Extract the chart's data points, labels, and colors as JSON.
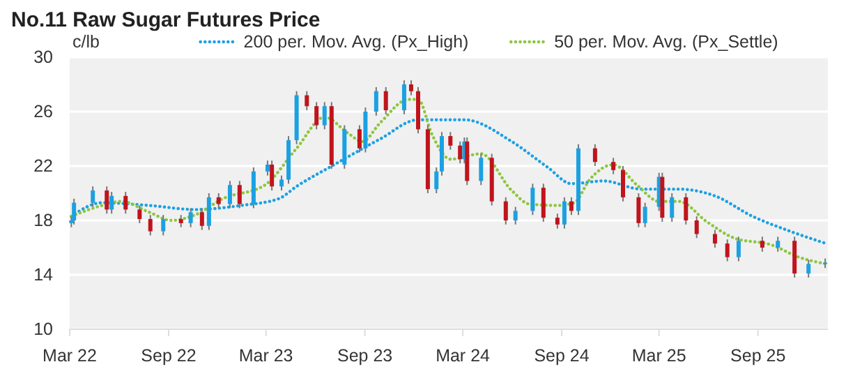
{
  "chart_data": {
    "type": "candlestick",
    "title": "No.11 Raw Sugar Futures Price",
    "ylabel": "c/lb",
    "x": [
      "2022-03-04",
      "2022-03-09",
      "2022-04-13",
      "2022-05-09",
      "2022-05-18",
      "2022-06-13",
      "2022-07-09",
      "2022-07-29",
      "2022-08-22",
      "2022-09-24",
      "2022-10-12",
      "2022-11-02",
      "2022-11-15",
      "2022-12-03",
      "2022-12-24",
      "2023-01-11",
      "2023-02-06",
      "2023-03-04",
      "2023-03-12",
      "2023-03-30",
      "2023-04-12",
      "2023-04-27",
      "2023-05-16",
      "2023-06-03",
      "2023-06-18",
      "2023-07-01",
      "2023-07-25",
      "2023-08-22",
      "2023-09-02",
      "2023-09-22",
      "2023-10-10",
      "2023-11-13",
      "2023-11-26",
      "2023-12-09",
      "2023-12-27",
      "2024-01-12",
      "2024-01-22",
      "2024-02-07",
      "2024-02-25",
      "2024-03-04",
      "2024-03-09",
      "2024-04-04",
      "2024-04-24",
      "2024-05-20",
      "2024-06-07",
      "2024-07-09",
      "2024-07-29",
      "2024-08-24",
      "2024-09-06",
      "2024-09-19",
      "2024-10-02",
      "2024-11-02",
      "2024-12-06",
      "2024-12-24",
      "2025-01-22",
      "2025-02-03",
      "2025-03-01",
      "2025-03-07",
      "2025-03-25",
      "2025-04-20",
      "2025-05-10",
      "2025-06-13",
      "2025-07-06",
      "2025-07-27",
      "2025-09-09",
      "2025-10-08",
      "2025-11-08",
      "2025-12-04",
      "2026-01-04"
    ],
    "ohlc": [
      [
        17.8,
        18.3,
        17.5,
        18.0
      ],
      [
        18.0,
        19.6,
        17.7,
        19.3
      ],
      [
        19.3,
        20.5,
        19.0,
        20.2
      ],
      [
        20.2,
        20.5,
        18.5,
        18.8
      ],
      [
        18.8,
        20.1,
        18.5,
        19.8
      ],
      [
        19.8,
        20.1,
        18.5,
        18.8
      ],
      [
        18.8,
        19.1,
        17.8,
        18.1
      ],
      [
        18.1,
        18.4,
        16.9,
        17.2
      ],
      [
        17.2,
        18.4,
        16.9,
        18.1
      ],
      [
        18.1,
        18.4,
        17.5,
        17.8
      ],
      [
        17.8,
        18.9,
        17.5,
        18.6
      ],
      [
        18.6,
        18.9,
        17.3,
        17.6
      ],
      [
        17.6,
        20.0,
        17.3,
        19.7
      ],
      [
        19.7,
        20.0,
        18.9,
        19.2
      ],
      [
        19.2,
        20.9,
        18.9,
        20.6
      ],
      [
        20.6,
        20.9,
        18.9,
        19.2
      ],
      [
        19.2,
        21.9,
        18.9,
        21.6
      ],
      [
        21.6,
        22.4,
        21.3,
        22.1
      ],
      [
        22.1,
        22.4,
        20.2,
        20.5
      ],
      [
        20.5,
        21.3,
        20.2,
        21.0
      ],
      [
        21.0,
        24.2,
        20.7,
        23.9
      ],
      [
        23.9,
        27.5,
        23.6,
        27.2
      ],
      [
        27.2,
        27.5,
        26.1,
        26.4
      ],
      [
        26.4,
        26.7,
        24.7,
        25.0
      ],
      [
        25.0,
        26.7,
        24.7,
        26.4
      ],
      [
        26.4,
        26.7,
        21.8,
        22.1
      ],
      [
        22.1,
        25.0,
        21.8,
        24.7
      ],
      [
        24.7,
        25.0,
        23.0,
        23.3
      ],
      [
        23.3,
        26.3,
        23.0,
        26.0
      ],
      [
        26.0,
        27.8,
        25.7,
        27.5
      ],
      [
        27.5,
        27.8,
        25.8,
        26.1
      ],
      [
        26.1,
        28.3,
        25.8,
        28.0
      ],
      [
        28.0,
        28.3,
        27.2,
        27.5
      ],
      [
        27.5,
        27.8,
        24.4,
        24.7
      ],
      [
        24.7,
        25.0,
        20.0,
        20.3
      ],
      [
        20.3,
        21.9,
        20.0,
        21.6
      ],
      [
        21.6,
        24.5,
        21.3,
        24.2
      ],
      [
        24.2,
        24.5,
        23.2,
        23.5
      ],
      [
        23.5,
        23.8,
        22.2,
        22.5
      ],
      [
        22.5,
        24.1,
        22.2,
        23.8
      ],
      [
        23.8,
        24.1,
        20.6,
        20.9
      ],
      [
        20.9,
        22.9,
        20.6,
        22.6
      ],
      [
        22.6,
        22.9,
        19.1,
        19.4
      ],
      [
        19.4,
        19.7,
        17.7,
        18.0
      ],
      [
        18.0,
        19.0,
        17.7,
        18.7
      ],
      [
        18.7,
        20.7,
        18.4,
        20.4
      ],
      [
        20.4,
        20.7,
        17.9,
        18.2
      ],
      [
        18.2,
        18.5,
        17.4,
        17.7
      ],
      [
        17.7,
        19.7,
        17.4,
        19.4
      ],
      [
        19.4,
        19.7,
        18.4,
        18.7
      ],
      [
        18.7,
        23.6,
        18.4,
        23.3
      ],
      [
        23.3,
        23.6,
        22.0,
        22.3
      ],
      [
        22.3,
        22.6,
        21.4,
        21.7
      ],
      [
        21.7,
        22.0,
        19.4,
        19.7
      ],
      [
        19.7,
        20.0,
        17.5,
        17.8
      ],
      [
        17.8,
        19.3,
        17.5,
        19.0
      ],
      [
        19.0,
        21.5,
        18.7,
        21.2
      ],
      [
        21.2,
        21.5,
        17.9,
        18.2
      ],
      [
        18.2,
        20.0,
        17.9,
        19.7
      ],
      [
        19.7,
        20.0,
        17.7,
        18.0
      ],
      [
        18.0,
        18.3,
        16.7,
        17.0
      ],
      [
        17.0,
        17.3,
        16.0,
        16.3
      ],
      [
        16.3,
        16.6,
        15.0,
        15.3
      ],
      [
        15.3,
        16.8,
        15.0,
        16.5
      ],
      [
        16.5,
        16.8,
        15.7,
        16.0
      ],
      [
        16.0,
        16.8,
        15.7,
        16.5
      ],
      [
        16.5,
        16.8,
        13.8,
        14.1
      ],
      [
        14.1,
        15.1,
        13.8,
        14.8
      ],
      [
        14.8,
        15.2,
        14.5,
        14.9
      ]
    ],
    "colors": [
      "#1ba1e2",
      "#1ba1e2",
      "#1ba1e2",
      "#c0141c",
      "#1ba1e2",
      "#c0141c",
      "#c0141c",
      "#c0141c",
      "#1ba1e2",
      "#c0141c",
      "#1ba1e2",
      "#c0141c",
      "#1ba1e2",
      "#c0141c",
      "#1ba1e2",
      "#c0141c",
      "#1ba1e2",
      "#1ba1e2",
      "#c0141c",
      "#1ba1e2",
      "#1ba1e2",
      "#1ba1e2",
      "#c0141c",
      "#c0141c",
      "#1ba1e2",
      "#c0141c",
      "#1ba1e2",
      "#c0141c",
      "#1ba1e2",
      "#1ba1e2",
      "#c0141c",
      "#1ba1e2",
      "#c0141c",
      "#c0141c",
      "#c0141c",
      "#1ba1e2",
      "#1ba1e2",
      "#c0141c",
      "#c0141c",
      "#1ba1e2",
      "#c0141c",
      "#1ba1e2",
      "#c0141c",
      "#c0141c",
      "#1ba1e2",
      "#1ba1e2",
      "#c0141c",
      "#c0141c",
      "#1ba1e2",
      "#c0141c",
      "#1ba1e2",
      "#c0141c",
      "#c0141c",
      "#c0141c",
      "#c0141c",
      "#1ba1e2",
      "#1ba1e2",
      "#c0141c",
      "#1ba1e2",
      "#c0141c",
      "#c0141c",
      "#c0141c",
      "#c0141c",
      "#1ba1e2",
      "#c0141c",
      "#1ba1e2",
      "#c0141c",
      "#1ba1e2",
      "#1ba1e2"
    ],
    "series": [
      {
        "name": "200 per. Mov. Avg. (Px_High)",
        "type": "line",
        "color": "#1ba1e2",
        "x": [
          "2022-03-04",
          "2022-04-30",
          "2022-07-27",
          "2022-10-20",
          "2023-01-14",
          "2023-03-25",
          "2023-04-27",
          "2023-07-06",
          "2023-09-30",
          "2023-12-09",
          "2024-01-22",
          "2024-03-04",
          "2024-05-31",
          "2024-08-06",
          "2024-09-19",
          "2024-11-18",
          "2025-01-27",
          "2025-04-07",
          "2025-06-13",
          "2025-08-22",
          "2025-10-31",
          "2026-01-06"
        ],
        "values": [
          18.3,
          19.3,
          19.1,
          18.8,
          19.1,
          19.6,
          20.5,
          22.1,
          24.0,
          25.4,
          25.4,
          25.4,
          23.8,
          21.9,
          20.7,
          20.9,
          20.3,
          20.3,
          19.8,
          18.3,
          17.2,
          16.3
        ]
      },
      {
        "name": "50 per. Mov. Avg. (Px_Settle)",
        "type": "line",
        "color": "#8dc63f",
        "x": [
          "2022-03-04",
          "2022-04-30",
          "2022-06-05",
          "2022-07-27",
          "2022-09-06",
          "2022-10-20",
          "2022-12-11",
          "2023-02-27",
          "2023-04-27",
          "2023-06-18",
          "2023-08-01",
          "2023-08-27",
          "2023-09-30",
          "2023-11-21",
          "2023-12-09",
          "2024-01-04",
          "2024-02-07",
          "2024-04-04",
          "2024-05-31",
          "2024-07-03",
          "2024-08-24",
          "2024-09-24",
          "2024-10-23",
          "2024-12-06",
          "2025-01-19",
          "2025-03-01",
          "2025-04-07",
          "2025-05-29",
          "2025-07-19",
          "2025-09-26",
          "2025-11-16",
          "2026-01-06"
        ],
        "values": [
          18.3,
          19.1,
          19.4,
          18.6,
          18.0,
          18.4,
          19.6,
          20.6,
          23.3,
          25.6,
          24.4,
          23.8,
          25.2,
          26.9,
          26.9,
          24.3,
          22.5,
          22.9,
          20.2,
          19.2,
          19.1,
          19.3,
          21.0,
          22.1,
          20.6,
          19.4,
          19.4,
          17.9,
          16.7,
          16.2,
          15.3,
          14.8
        ]
      }
    ],
    "xlim": [
      "2022-03-01",
      "2026-01-09"
    ],
    "xticks": [
      {
        "value": "2022-03-01",
        "label": "Mar 22"
      },
      {
        "value": "2022-09-01",
        "label": "Sep 22"
      },
      {
        "value": "2023-03-01",
        "label": "Mar 23"
      },
      {
        "value": "2023-09-01",
        "label": "Sep 23"
      },
      {
        "value": "2024-03-01",
        "label": "Mar 24"
      },
      {
        "value": "2024-09-01",
        "label": "Sep 24"
      },
      {
        "value": "2025-03-01",
        "label": "Mar 25"
      },
      {
        "value": "2025-09-01",
        "label": "Sep 25"
      }
    ],
    "ylim": [
      10,
      30
    ],
    "yticks": [
      10,
      14,
      18,
      22,
      26,
      30
    ],
    "grid": "y",
    "legend": "top right",
    "line_style": "dotted",
    "marker": "none"
  }
}
